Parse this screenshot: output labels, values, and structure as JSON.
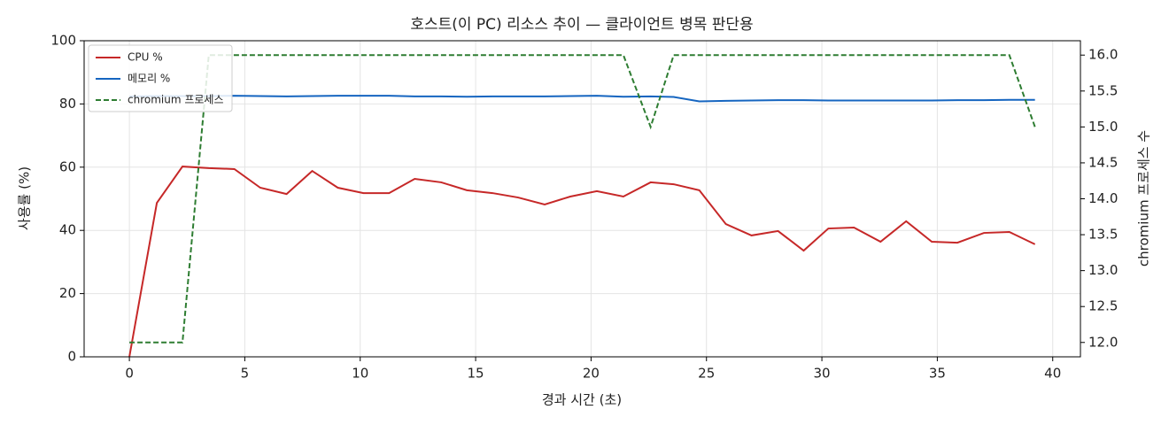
{
  "chart_data": {
    "type": "line",
    "title": "호스트(이 PC) 리소스 추이 — 클라이언트 병목 판단용",
    "xlabel": "경과 시간 (초)",
    "ylabel": "사용률 (%)",
    "y2label": "chromium 프로세스 수",
    "x": [
      0,
      1.19,
      2.3,
      3.44,
      4.55,
      5.67,
      6.81,
      7.92,
      9.03,
      10.14,
      11.25,
      12.36,
      13.51,
      14.62,
      15.73,
      16.84,
      17.99,
      19.1,
      20.25,
      21.4,
      22.58,
      23.58,
      24.69,
      25.84,
      26.95,
      28.1,
      29.21,
      30.28,
      31.39,
      32.54,
      33.65,
      34.76,
      35.87,
      37.02,
      38.12,
      39.23
    ],
    "series": [
      {
        "name": "CPU %",
        "color": "#c62828",
        "linestyle": "solid",
        "axis": "y",
        "values": [
          0,
          48.7,
          60.2,
          59.7,
          59.4,
          53.5,
          51.5,
          58.8,
          53.5,
          51.8,
          51.8,
          56.3,
          55.2,
          52.7,
          51.8,
          50.4,
          48.2,
          50.7,
          52.4,
          50.7,
          55.2,
          54.6,
          52.7,
          42.0,
          38.4,
          39.8,
          33.6,
          40.6,
          40.9,
          36.4,
          42.9,
          36.4,
          36.1,
          39.2,
          39.5,
          35.6
        ]
      },
      {
        "name": "메모리 %",
        "color": "#1565c0",
        "linestyle": "solid",
        "axis": "y",
        "values": [
          82.4,
          82.5,
          82.5,
          82.5,
          82.6,
          82.5,
          82.4,
          82.5,
          82.6,
          82.6,
          82.6,
          82.4,
          82.4,
          82.3,
          82.4,
          82.4,
          82.4,
          82.5,
          82.6,
          82.3,
          82.4,
          82.2,
          80.8,
          81.0,
          81.1,
          81.2,
          81.2,
          81.1,
          81.1,
          81.1,
          81.1,
          81.1,
          81.2,
          81.2,
          81.3,
          81.3
        ]
      },
      {
        "name": "chromium 프로세스",
        "color": "#2e7d32",
        "linestyle": "dashed",
        "axis": "y2",
        "values": [
          12,
          12,
          12,
          16,
          16,
          16,
          16,
          16,
          16,
          16,
          16,
          16,
          16,
          16,
          16,
          16,
          16,
          16,
          16,
          16,
          15,
          16,
          16,
          16,
          16,
          16,
          16,
          16,
          16,
          16,
          16,
          16,
          16,
          16,
          16,
          15
        ]
      }
    ],
    "xlim": [
      -1.96,
      41.2
    ],
    "xticks": [
      0,
      5,
      10,
      15,
      20,
      25,
      30,
      35,
      40
    ],
    "ylim": [
      0,
      100
    ],
    "yticks": [
      0,
      20,
      40,
      60,
      80,
      100
    ],
    "y2lim": [
      11.8,
      16.2
    ],
    "y2ticks": [
      {
        "value": 12,
        "label": "12.0"
      },
      12.5,
      {
        "value": 13,
        "label": "13.0"
      },
      13.5,
      {
        "value": 14,
        "label": "14.0"
      },
      14.5,
      {
        "value": 15,
        "label": "15.0"
      },
      15.5,
      {
        "value": 16,
        "label": "16.0"
      }
    ],
    "grid": true,
    "legend": "upper left"
  }
}
